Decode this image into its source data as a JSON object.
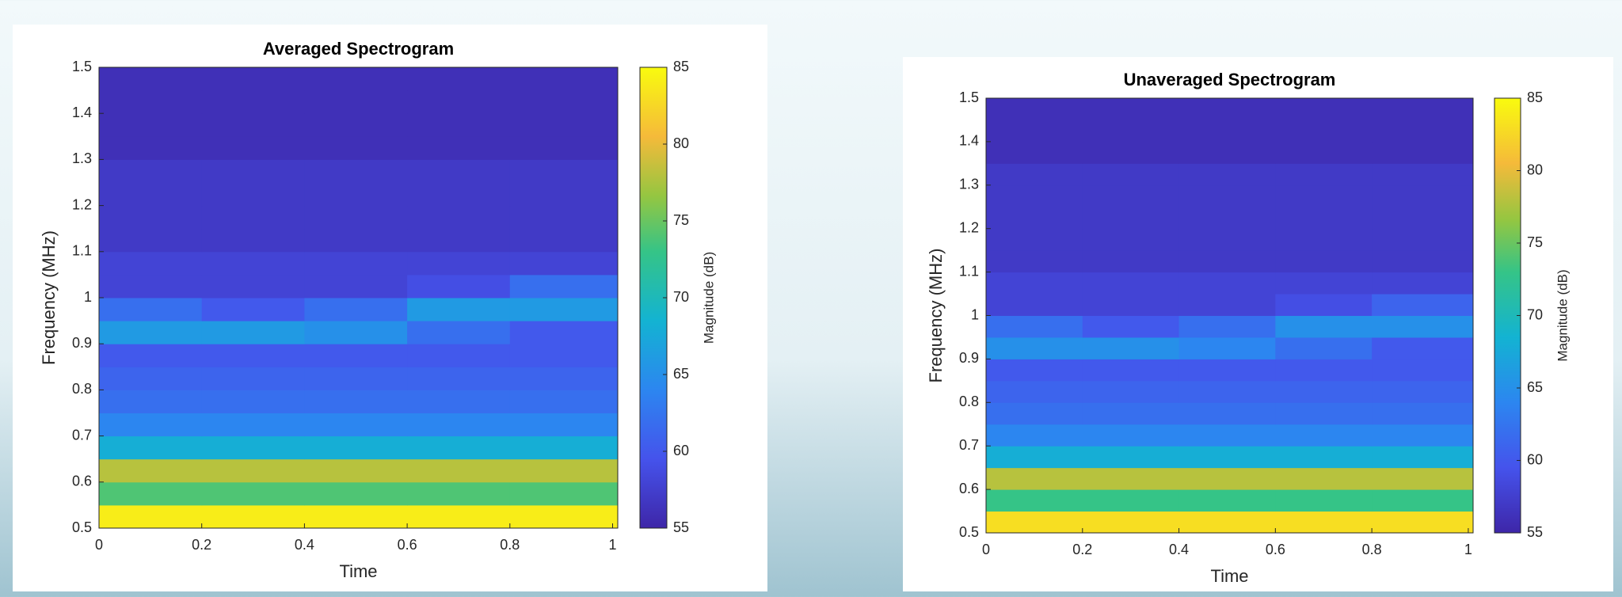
{
  "chart_data": [
    {
      "type": "heatmap",
      "title": "Averaged Spectrogram",
      "xlabel": "Time",
      "ylabel": "Frequency (MHz)",
      "colorbar_label": "Magnitude (dB)",
      "x_edges": [
        0,
        0.2,
        0.4,
        0.6,
        0.8,
        1.01
      ],
      "y_edges": [
        0.5,
        0.55,
        0.6,
        0.65,
        0.7,
        0.75,
        0.8,
        0.85,
        0.9,
        0.95,
        1.0,
        1.05,
        1.1,
        1.15,
        1.2,
        1.25,
        1.3,
        1.35,
        1.4,
        1.45,
        1.5
      ],
      "z": [
        [
          84,
          84,
          84,
          84,
          84
        ],
        [
          74,
          74,
          74,
          74,
          74
        ],
        [
          78,
          78,
          78,
          78,
          78
        ],
        [
          68,
          68,
          68,
          68,
          68
        ],
        [
          64,
          64,
          64,
          64,
          64
        ],
        [
          62,
          62,
          62,
          62,
          62
        ],
        [
          61,
          61,
          61,
          61,
          61
        ],
        [
          60,
          60,
          60,
          60,
          60
        ],
        [
          66,
          66,
          65,
          62,
          60
        ],
        [
          62,
          60,
          62,
          66,
          66
        ],
        [
          58,
          58,
          58,
          59,
          62
        ],
        [
          58,
          58,
          58,
          58,
          58
        ],
        [
          57,
          57,
          57,
          57,
          57
        ],
        [
          57,
          57,
          57,
          57,
          57
        ],
        [
          57,
          57,
          57,
          57,
          57
        ],
        [
          57,
          57,
          57,
          57,
          57
        ],
        [
          56,
          56,
          56,
          56,
          56
        ],
        [
          56,
          56,
          56,
          56,
          56
        ],
        [
          56,
          56,
          56,
          56,
          56
        ],
        [
          56,
          56,
          56,
          56,
          56
        ]
      ],
      "xlim": [
        0,
        1.01
      ],
      "ylim": [
        0.5,
        1.5
      ],
      "xticks": [
        0,
        0.2,
        0.4,
        0.6,
        0.8,
        1
      ],
      "yticks": [
        0.5,
        0.6,
        0.7,
        0.8,
        0.9,
        1,
        1.1,
        1.2,
        1.3,
        1.4,
        1.5
      ],
      "clim": [
        55,
        85
      ],
      "cticks": [
        55,
        60,
        65,
        70,
        75,
        80,
        85
      ]
    },
    {
      "type": "heatmap",
      "title": "Unaveraged Spectrogram",
      "xlabel": "Time",
      "ylabel": "Frequency (MHz)",
      "colorbar_label": "Magnitude (dB)",
      "x_edges": [
        0,
        0.2,
        0.4,
        0.6,
        0.8,
        1.01
      ],
      "y_edges": [
        0.5,
        0.55,
        0.6,
        0.65,
        0.7,
        0.75,
        0.8,
        0.85,
        0.9,
        0.95,
        1.0,
        1.05,
        1.1,
        1.15,
        1.2,
        1.25,
        1.3,
        1.35,
        1.4,
        1.45,
        1.5
      ],
      "z": [
        [
          83,
          83,
          83,
          83,
          83
        ],
        [
          73,
          73,
          73,
          73,
          73
        ],
        [
          78,
          78,
          78,
          78,
          78
        ],
        [
          68,
          68,
          68,
          68,
          68
        ],
        [
          64,
          64,
          64,
          64,
          64
        ],
        [
          62,
          62,
          62,
          62,
          62
        ],
        [
          61,
          61,
          61,
          61,
          61
        ],
        [
          60,
          60,
          60,
          60,
          60
        ],
        [
          65,
          65,
          64,
          62,
          60
        ],
        [
          62,
          60,
          62,
          65,
          65
        ],
        [
          58,
          58,
          58,
          59,
          61
        ],
        [
          58,
          58,
          58,
          58,
          58
        ],
        [
          57,
          57,
          57,
          57,
          57
        ],
        [
          57,
          57,
          57,
          57,
          57
        ],
        [
          57,
          57,
          57,
          57,
          57
        ],
        [
          57,
          57,
          57,
          57,
          57
        ],
        [
          57,
          57,
          57,
          57,
          57
        ],
        [
          56,
          56,
          56,
          56,
          56
        ],
        [
          56,
          56,
          56,
          56,
          56
        ],
        [
          56,
          56,
          56,
          56,
          56
        ]
      ],
      "xlim": [
        0,
        1.01
      ],
      "ylim": [
        0.5,
        1.5
      ],
      "xticks": [
        0,
        0.2,
        0.4,
        0.6,
        0.8,
        1
      ],
      "yticks": [
        0.5,
        0.6,
        0.7,
        0.8,
        0.9,
        1,
        1.1,
        1.2,
        1.3,
        1.4,
        1.5
      ],
      "clim": [
        55,
        85
      ],
      "cticks": [
        55,
        60,
        65,
        70,
        75,
        80,
        85
      ]
    }
  ]
}
